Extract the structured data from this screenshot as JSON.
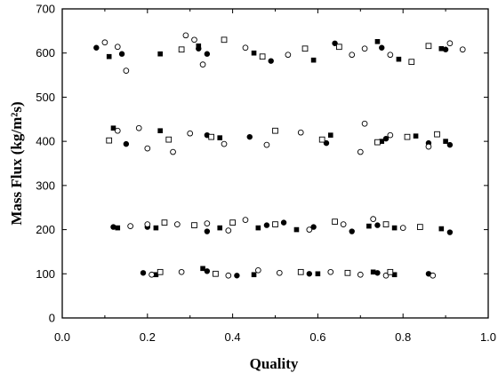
{
  "chart_data": {
    "type": "scatter",
    "title": "",
    "xlabel": "Quality",
    "ylabel": "Mass Flux (kg/m²s)",
    "xlim": [
      0.0,
      1.0
    ],
    "ylim": [
      0,
      700
    ],
    "xticks": [
      "0.0",
      "0.2",
      "0.4",
      "0.6",
      "0.8",
      "1.0"
    ],
    "yticks": [
      "0",
      "100",
      "200",
      "300",
      "400",
      "500",
      "600",
      "700"
    ],
    "grid": false,
    "legend": "none",
    "series": [
      {
        "marker": "filled-circle",
        "points": [
          [
            0.08,
            612
          ],
          [
            0.14,
            598
          ],
          [
            0.32,
            610
          ],
          [
            0.34,
            598
          ],
          [
            0.49,
            582
          ],
          [
            0.64,
            622
          ],
          [
            0.75,
            612
          ],
          [
            0.9,
            608
          ],
          [
            0.15,
            394
          ],
          [
            0.34,
            414
          ],
          [
            0.44,
            410
          ],
          [
            0.62,
            396
          ],
          [
            0.76,
            406
          ],
          [
            0.86,
            396
          ],
          [
            0.91,
            392
          ],
          [
            0.12,
            206
          ],
          [
            0.2,
            206
          ],
          [
            0.34,
            196
          ],
          [
            0.48,
            210
          ],
          [
            0.52,
            216
          ],
          [
            0.59,
            206
          ],
          [
            0.68,
            196
          ],
          [
            0.74,
            210
          ],
          [
            0.91,
            194
          ],
          [
            0.19,
            102
          ],
          [
            0.34,
            106
          ],
          [
            0.41,
            96
          ],
          [
            0.58,
            100
          ],
          [
            0.74,
            102
          ],
          [
            0.86,
            100
          ]
        ]
      },
      {
        "marker": "filled-square",
        "points": [
          [
            0.11,
            592
          ],
          [
            0.23,
            598
          ],
          [
            0.32,
            616
          ],
          [
            0.45,
            600
          ],
          [
            0.59,
            584
          ],
          [
            0.74,
            626
          ],
          [
            0.79,
            586
          ],
          [
            0.89,
            610
          ],
          [
            0.12,
            430
          ],
          [
            0.23,
            424
          ],
          [
            0.37,
            408
          ],
          [
            0.63,
            414
          ],
          [
            0.75,
            400
          ],
          [
            0.83,
            412
          ],
          [
            0.9,
            400
          ],
          [
            0.13,
            204
          ],
          [
            0.22,
            204
          ],
          [
            0.37,
            204
          ],
          [
            0.46,
            204
          ],
          [
            0.55,
            200
          ],
          [
            0.72,
            208
          ],
          [
            0.78,
            204
          ],
          [
            0.89,
            202
          ],
          [
            0.22,
            98
          ],
          [
            0.33,
            112
          ],
          [
            0.45,
            98
          ],
          [
            0.6,
            100
          ],
          [
            0.73,
            104
          ],
          [
            0.78,
            98
          ]
        ]
      },
      {
        "marker": "open-circle",
        "points": [
          [
            0.1,
            624
          ],
          [
            0.13,
            614
          ],
          [
            0.15,
            560
          ],
          [
            0.29,
            640
          ],
          [
            0.31,
            630
          ],
          [
            0.33,
            574
          ],
          [
            0.43,
            612
          ],
          [
            0.53,
            596
          ],
          [
            0.68,
            596
          ],
          [
            0.71,
            610
          ],
          [
            0.77,
            596
          ],
          [
            0.91,
            622
          ],
          [
            0.94,
            608
          ],
          [
            0.13,
            424
          ],
          [
            0.18,
            430
          ],
          [
            0.2,
            384
          ],
          [
            0.26,
            376
          ],
          [
            0.3,
            418
          ],
          [
            0.38,
            394
          ],
          [
            0.48,
            392
          ],
          [
            0.56,
            420
          ],
          [
            0.7,
            376
          ],
          [
            0.71,
            440
          ],
          [
            0.77,
            414
          ],
          [
            0.86,
            388
          ],
          [
            0.16,
            208
          ],
          [
            0.2,
            212
          ],
          [
            0.27,
            212
          ],
          [
            0.34,
            214
          ],
          [
            0.39,
            198
          ],
          [
            0.43,
            222
          ],
          [
            0.58,
            200
          ],
          [
            0.66,
            212
          ],
          [
            0.73,
            224
          ],
          [
            0.8,
            204
          ],
          [
            0.21,
            98
          ],
          [
            0.28,
            104
          ],
          [
            0.39,
            96
          ],
          [
            0.46,
            108
          ],
          [
            0.51,
            102
          ],
          [
            0.63,
            104
          ],
          [
            0.7,
            98
          ],
          [
            0.76,
            96
          ],
          [
            0.87,
            96
          ]
        ]
      },
      {
        "marker": "open-square",
        "points": [
          [
            0.28,
            608
          ],
          [
            0.38,
            630
          ],
          [
            0.47,
            592
          ],
          [
            0.57,
            610
          ],
          [
            0.65,
            614
          ],
          [
            0.82,
            580
          ],
          [
            0.86,
            616
          ],
          [
            0.11,
            402
          ],
          [
            0.25,
            404
          ],
          [
            0.35,
            410
          ],
          [
            0.5,
            424
          ],
          [
            0.61,
            404
          ],
          [
            0.74,
            398
          ],
          [
            0.81,
            410
          ],
          [
            0.88,
            416
          ],
          [
            0.24,
            216
          ],
          [
            0.31,
            210
          ],
          [
            0.4,
            216
          ],
          [
            0.5,
            212
          ],
          [
            0.64,
            218
          ],
          [
            0.76,
            212
          ],
          [
            0.84,
            206
          ],
          [
            0.23,
            104
          ],
          [
            0.36,
            100
          ],
          [
            0.56,
            104
          ],
          [
            0.67,
            102
          ],
          [
            0.77,
            104
          ]
        ]
      }
    ]
  }
}
